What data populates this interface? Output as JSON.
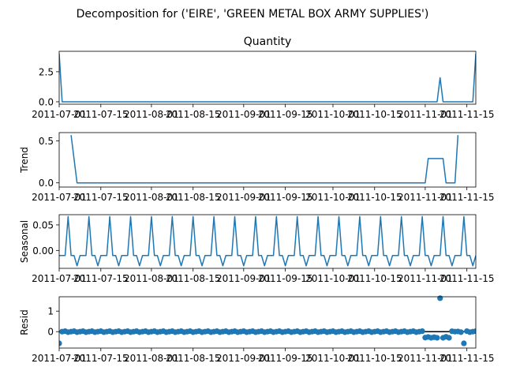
{
  "figure_title": "Decomposition for ('EIRE', 'GREEN METAL BOX ARMY SUPPLIES')",
  "colors": {
    "line": "#1f77b4",
    "zero_line": "#000000",
    "axes": "#000000"
  },
  "x_axis": {
    "type": "date",
    "range": [
      "2011-07-01",
      "2011-11-18"
    ],
    "tick_labels": [
      "2011-07-01",
      "2011-07-15",
      "2011-08-01",
      "2011-08-15",
      "2011-09-01",
      "2011-09-15",
      "2011-10-01",
      "2011-10-15",
      "2011-11-01",
      "2011-11-15"
    ]
  },
  "chart_data": [
    {
      "type": "line",
      "title": "Quantity",
      "ylabel": "",
      "ylim": [
        -0.2,
        4.2
      ],
      "yticks": [
        "0.0",
        "2.5"
      ],
      "series": [
        {
          "points": [
            [
              "2011-07-01",
              4.0
            ],
            [
              "2011-07-02",
              0
            ],
            [
              "2011-11-05",
              0
            ],
            [
              "2011-11-06",
              2.0
            ],
            [
              "2011-11-07",
              0
            ],
            [
              "2011-11-17",
              0
            ],
            [
              "2011-11-18",
              4.0
            ]
          ]
        }
      ]
    },
    {
      "type": "line",
      "title": "",
      "ylabel": "Trend",
      "ylim": [
        -0.05,
        0.6
      ],
      "yticks": [
        "0.0",
        "0.5"
      ],
      "series": [
        {
          "points": [
            [
              "2011-07-05",
              0.57
            ],
            [
              "2011-07-07",
              0
            ],
            [
              "2011-11-01",
              0
            ],
            [
              "2011-11-02",
              0.29
            ],
            [
              "2011-11-07",
              0.29
            ],
            [
              "2011-11-08",
              0
            ],
            [
              "2011-11-11",
              0
            ],
            [
              "2011-11-12",
              0.57
            ]
          ]
        }
      ]
    },
    {
      "type": "line",
      "title": "",
      "ylabel": "Seasonal",
      "ylim": [
        -0.035,
        0.07
      ],
      "yticks": [
        "0.00",
        "0.05"
      ],
      "seasonal_period": 7,
      "seasonal_pattern": [
        -0.01,
        -0.01,
        -0.01,
        0.0663,
        -0.01,
        -0.01,
        -0.03
      ],
      "series": [
        {
          "start": "2011-07-01",
          "end": "2011-11-18",
          "pattern_offset": 0
        }
      ]
    },
    {
      "type": "scatter",
      "title": "",
      "ylabel": "Resid",
      "ylim": [
        -0.8,
        1.7
      ],
      "yticks": [
        "0",
        "1"
      ],
      "zero_line": 0,
      "series": [
        {
          "start": "2011-07-01",
          "end": "2011-11-18",
          "base_noise": 0.025,
          "points": [
            [
              "2011-07-01",
              -0.57
            ],
            [
              "2011-11-01",
              -0.29
            ],
            [
              "2011-11-02",
              -0.26
            ],
            [
              "2011-11-03",
              -0.3
            ],
            [
              "2011-11-04",
              -0.27
            ],
            [
              "2011-11-05",
              -0.3
            ],
            [
              "2011-11-06",
              1.63
            ],
            [
              "2011-11-07",
              -0.3
            ],
            [
              "2011-11-08",
              -0.25
            ],
            [
              "2011-11-09",
              -0.3
            ],
            [
              "2011-11-10",
              0.02
            ],
            [
              "2011-11-11",
              0.0
            ],
            [
              "2011-11-12",
              0.01
            ],
            [
              "2011-11-14",
              -0.57
            ]
          ]
        }
      ]
    }
  ]
}
